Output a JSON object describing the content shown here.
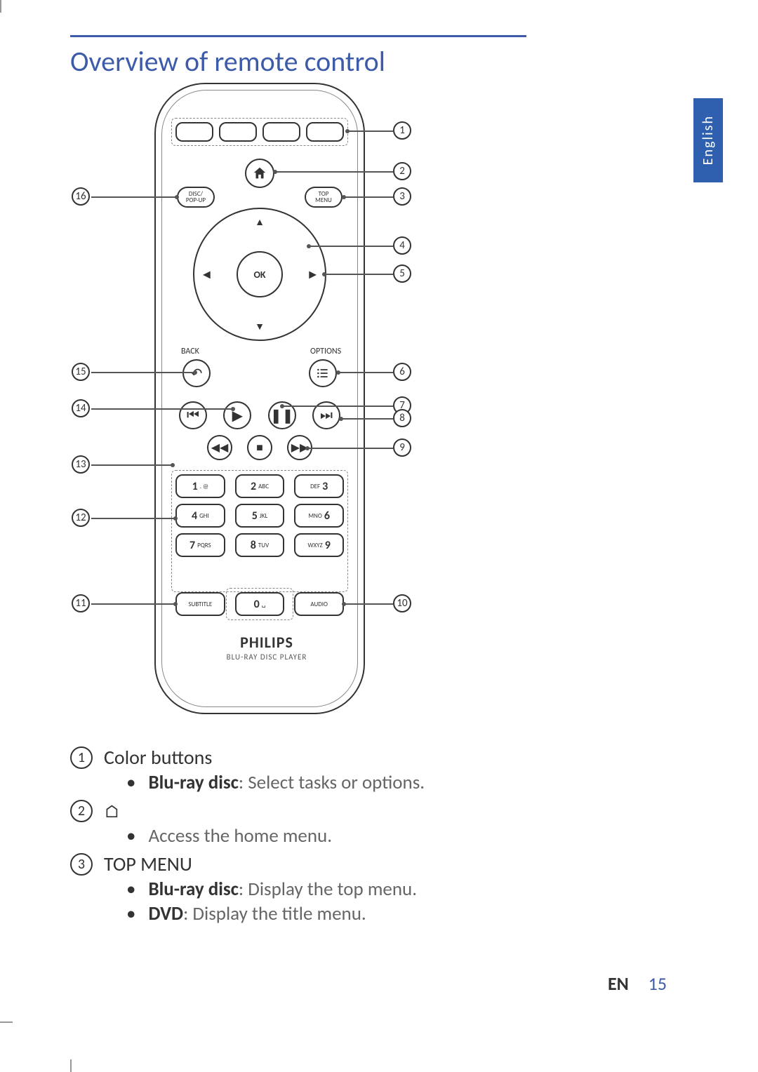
{
  "section_title": "Overview of remote control",
  "language_tab": "English",
  "footer": {
    "lang": "EN",
    "page": "15"
  },
  "remote": {
    "disc_popup": "DISC/\nPOP-UP",
    "top_menu": "TOP\nMENU",
    "ok": "OK",
    "back_label": "BACK",
    "options_label": "OPTIONS",
    "brand": "PHILIPS",
    "brand_sub": "BLU-RAY DISC PLAYER",
    "keypad": [
      {
        "big": "1",
        "sm": ". @",
        "order": "bs"
      },
      {
        "big": "2",
        "sm": "ABC",
        "order": "bs"
      },
      {
        "big": "3",
        "sm": "DEF",
        "order": "sb"
      },
      {
        "big": "4",
        "sm": "GHI",
        "order": "bs"
      },
      {
        "big": "5",
        "sm": "JKL",
        "order": "bs"
      },
      {
        "big": "6",
        "sm": "MNO",
        "order": "sb"
      },
      {
        "big": "7",
        "sm": "PQRS",
        "order": "bs"
      },
      {
        "big": "8",
        "sm": "TUV",
        "order": "bs"
      },
      {
        "big": "9",
        "sm": "WXYZ",
        "order": "sb"
      }
    ],
    "subtitle_key": "SUBTITLE",
    "zero_key": {
      "big": "0",
      "sm": "␣"
    },
    "audio_key": "AUDIO"
  },
  "callouts_right": [
    "1",
    "2",
    "3",
    "4",
    "5",
    "6",
    "7",
    "8",
    "9",
    "10"
  ],
  "callouts_left": [
    "16",
    "15",
    "14",
    "13",
    "12",
    "11"
  ],
  "descriptions": [
    {
      "num": "1",
      "title": "Color buttons",
      "bullets": [
        {
          "bold": "Blu-ray disc",
          "text": ": Select tasks or options."
        }
      ]
    },
    {
      "num": "2",
      "title_icon": "home",
      "bullets": [
        {
          "text": "Access the home menu."
        }
      ]
    },
    {
      "num": "3",
      "title": "TOP MENU",
      "bullets": [
        {
          "bold": "Blu-ray disc",
          "text": ": Display the top menu."
        },
        {
          "bold": "DVD",
          "text": ": Display the title menu."
        }
      ]
    }
  ]
}
